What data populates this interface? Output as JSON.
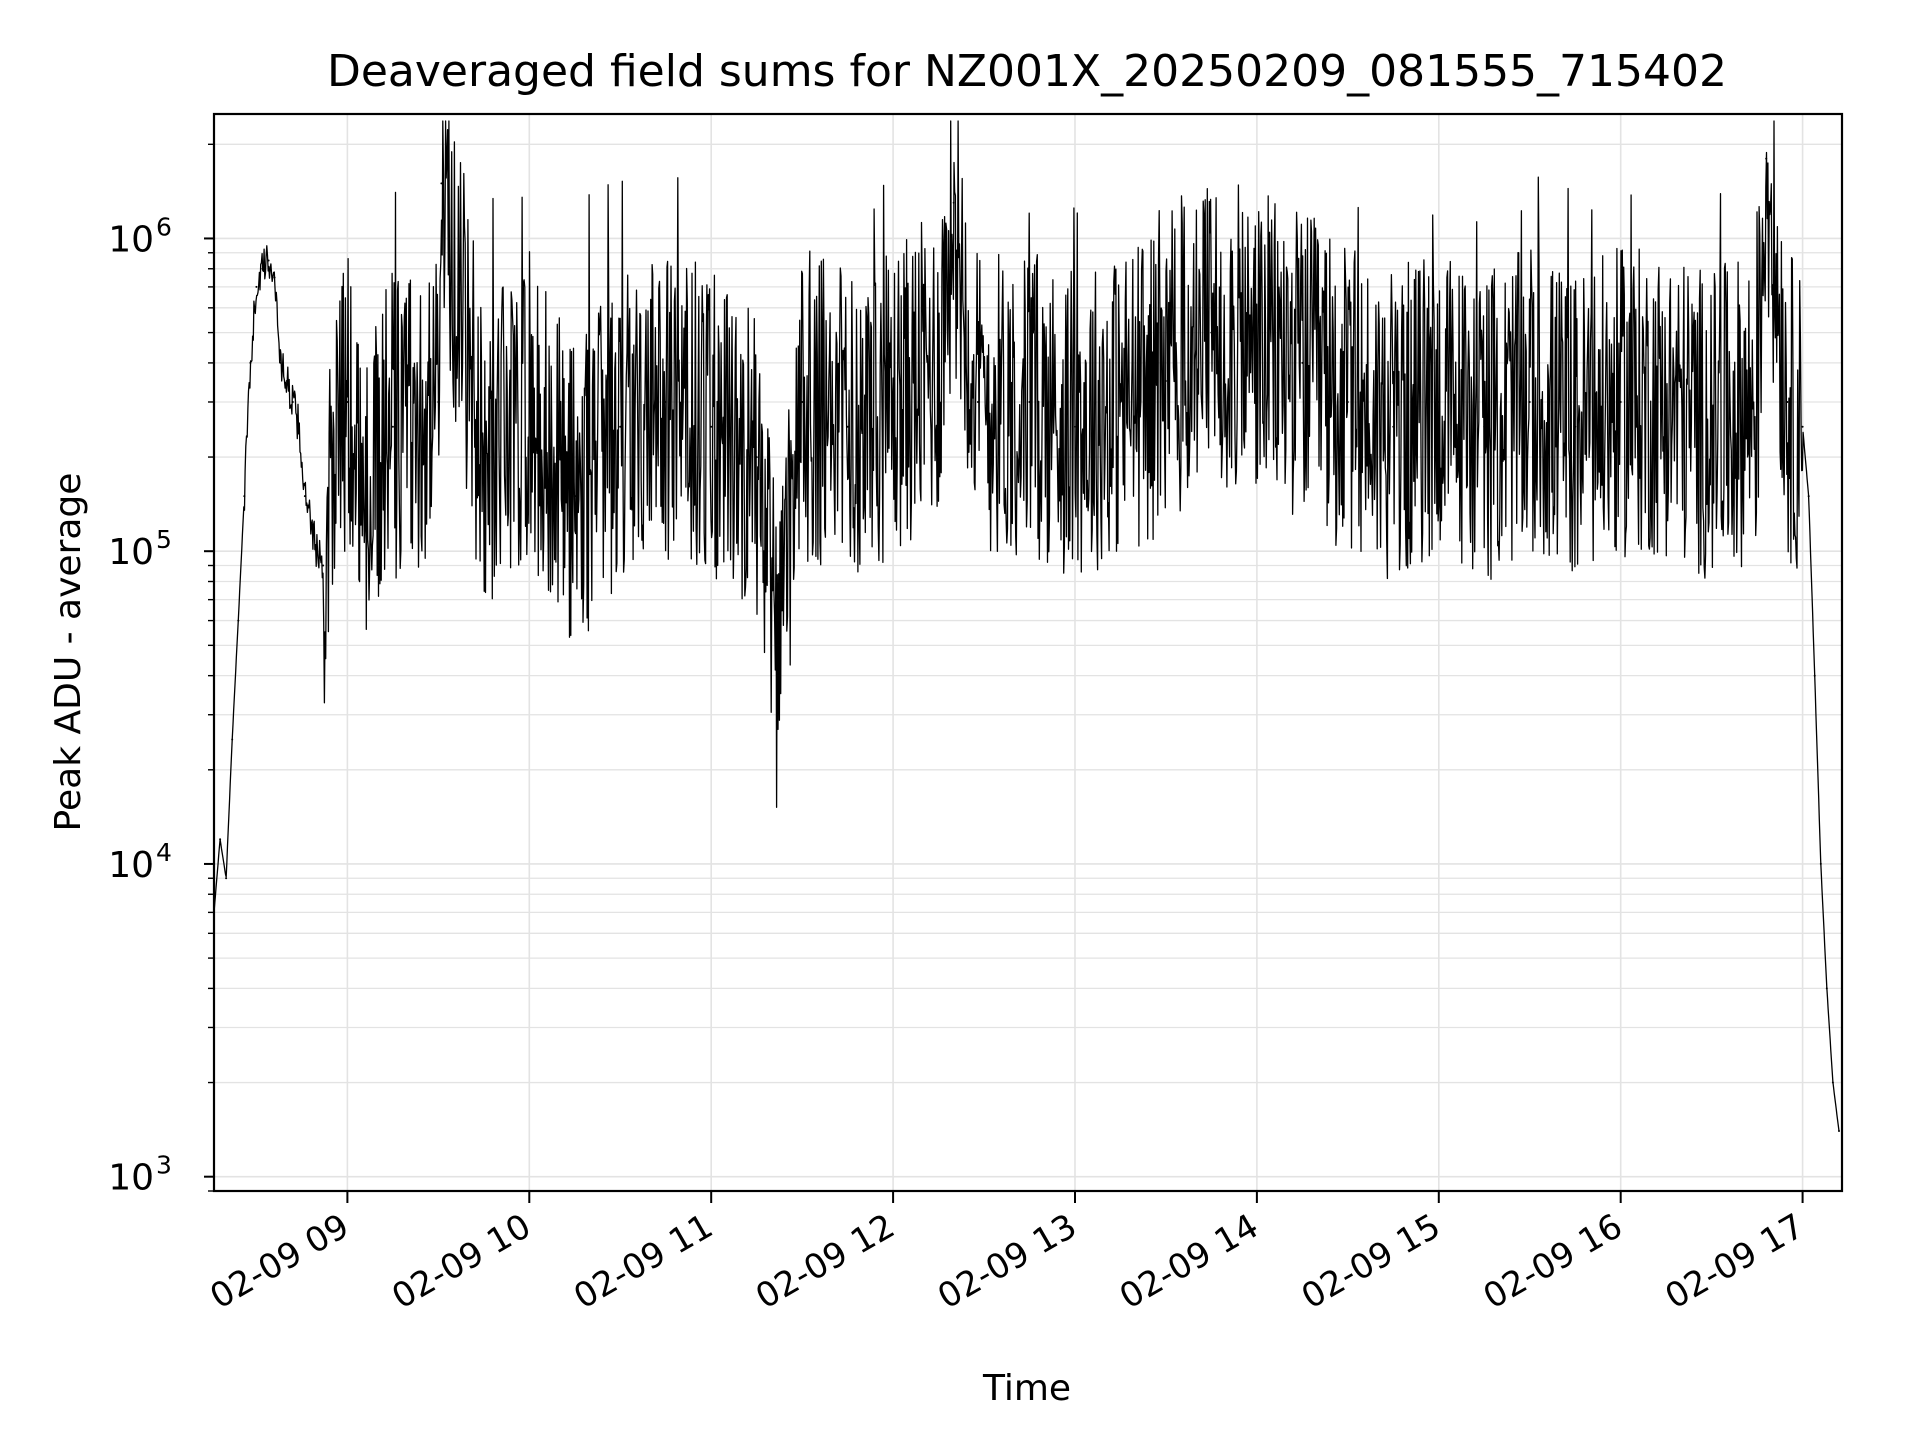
{
  "chart_data": {
    "type": "line",
    "title": "Deaveraged field sums for NZ001X_20250209_081555_715402",
    "xlabel": "Time",
    "ylabel": "Peak ADU - average",
    "yscale": "log",
    "ylim": [
      900,
      2500000
    ],
    "xlim": [
      "2025-02-09 08:16",
      "2025-02-09 17:13"
    ],
    "grid": true,
    "line_color": "#000000",
    "grid_color": "#e3e3e3",
    "x_ticks": [
      "02-09 09",
      "02-09 10",
      "02-09 11",
      "02-09 12",
      "02-09 13",
      "02-09 14",
      "02-09 15",
      "02-09 16",
      "02-09 17"
    ],
    "y_ticks": [
      {
        "base": "10",
        "exp": "3",
        "value": 1000
      },
      {
        "base": "10",
        "exp": "4",
        "value": 10000
      },
      {
        "base": "10",
        "exp": "5",
        "value": 100000
      },
      {
        "base": "10",
        "exp": "6",
        "value": 1000000
      }
    ],
    "series": [
      {
        "x": [
          "2025-02-09 08:16",
          "2025-02-09 08:18",
          "2025-02-09 08:20",
          "2025-02-09 08:22",
          "2025-02-09 08:24",
          "2025-02-09 08:26",
          "2025-02-09 08:28",
          "2025-02-09 08:30",
          "2025-02-09 08:32",
          "2025-02-09 08:34",
          "2025-02-09 08:36",
          "2025-02-09 08:38",
          "2025-02-09 08:40",
          "2025-02-09 08:42",
          "2025-02-09 08:44",
          "2025-02-09 08:46",
          "2025-02-09 08:48",
          "2025-02-09 08:50",
          "2025-02-09 08:52",
          "2025-02-09 08:55",
          "2025-02-09 09:00",
          "2025-02-09 09:05",
          "2025-02-09 09:15",
          "2025-02-09 09:30",
          "2025-02-09 09:31",
          "2025-02-09 09:45",
          "2025-02-09 10:00",
          "2025-02-09 10:15",
          "2025-02-09 10:30",
          "2025-02-09 10:45",
          "2025-02-09 11:00",
          "2025-02-09 11:15",
          "2025-02-09 11:22",
          "2025-02-09 11:30",
          "2025-02-09 11:45",
          "2025-02-09 12:00",
          "2025-02-09 12:15",
          "2025-02-09 12:20",
          "2025-02-09 12:28",
          "2025-02-09 12:45",
          "2025-02-09 13:00",
          "2025-02-09 13:15",
          "2025-02-09 13:30",
          "2025-02-09 13:45",
          "2025-02-09 14:00",
          "2025-02-09 14:15",
          "2025-02-09 14:30",
          "2025-02-09 14:45",
          "2025-02-09 15:00",
          "2025-02-09 15:15",
          "2025-02-09 15:30",
          "2025-02-09 15:45",
          "2025-02-09 16:00",
          "2025-02-09 16:15",
          "2025-02-09 16:30",
          "2025-02-09 16:45",
          "2025-02-09 16:48",
          "2025-02-09 16:55",
          "2025-02-09 17:00",
          "2025-02-09 17:02",
          "2025-02-09 17:04",
          "2025-02-09 17:06",
          "2025-02-09 17:08",
          "2025-02-09 17:10",
          "2025-02-09 17:12"
        ],
        "y": [
          7000,
          12000,
          9000,
          25000,
          60000,
          150000,
          400000,
          700000,
          800000,
          850000,
          750000,
          400000,
          350000,
          300000,
          250000,
          150000,
          120000,
          100000,
          90000,
          200000,
          300000,
          150000,
          250000,
          300000,
          1500000,
          200000,
          300000,
          150000,
          250000,
          300000,
          250000,
          200000,
          40000,
          300000,
          250000,
          300000,
          400000,
          1300000,
          300000,
          300000,
          250000,
          300000,
          350000,
          500000,
          450000,
          400000,
          300000,
          250000,
          300000,
          250000,
          300000,
          250000,
          300000,
          300000,
          250000,
          300000,
          1800000,
          300000,
          250000,
          150000,
          40000,
          10000,
          4000,
          2000,
          1400
        ]
      }
    ]
  }
}
